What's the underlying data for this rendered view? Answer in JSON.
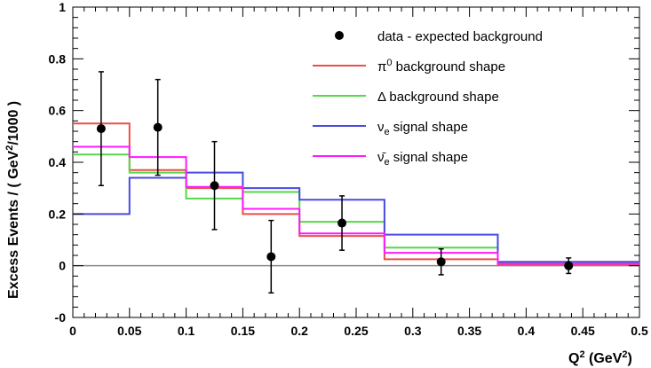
{
  "chart_data": {
    "type": "line",
    "title": "",
    "xlabel": "Q",
    "xlabel_sup": "2",
    "xlabel_unit": " (GeV",
    "xlabel_unit_sup": "2",
    "xlabel_end": ")",
    "ylabel": "Excess Events / ( GeV",
    "ylabel_sup": "2",
    "ylabel_end": "/1000 )",
    "xlim": [
      0,
      0.5
    ],
    "ylim": [
      -0.2,
      1.0
    ],
    "xticks": [
      "0",
      "0.05",
      "0.1",
      "0.15",
      "0.2",
      "0.25",
      "0.3",
      "0.35",
      "0.4",
      "0.45",
      "0.5"
    ],
    "yticks": [
      "-0",
      "0",
      "0.2",
      "0.4",
      "0.6",
      "0.8",
      "1"
    ],
    "ytick_values": [
      -0.2,
      0,
      0.2,
      0.4,
      0.6,
      0.8,
      1.0
    ],
    "bin_edges": [
      0,
      0.05,
      0.1,
      0.15,
      0.2,
      0.275,
      0.375,
      0.5
    ],
    "series": [
      {
        "name": "π⁰ background shape",
        "legend_main": "π",
        "legend_sup": "0",
        "legend_rest": " background shape",
        "color": "#e8504a",
        "values": [
          0.55,
          0.37,
          0.3,
          0.2,
          0.115,
          0.025,
          0.005
        ]
      },
      {
        "name": "Δ background shape",
        "legend_main": "Δ",
        "legend_sup": "",
        "legend_rest": " background shape",
        "color": "#55d84a",
        "values": [
          0.43,
          0.36,
          0.26,
          0.285,
          0.17,
          0.07,
          0.012
        ]
      },
      {
        "name": "νe signal shape",
        "legend_main": "ν",
        "legend_sub": "e",
        "legend_rest": " signal shape",
        "color": "#4a4ae0",
        "values": [
          0.2,
          0.34,
          0.36,
          0.3,
          0.255,
          0.12,
          0.015
        ]
      },
      {
        "name": "ν̄e signal shape",
        "legend_main": "ν̄",
        "legend_sub": "e",
        "legend_rest": " signal shape",
        "color": "#ff1aff",
        "values": [
          0.46,
          0.42,
          0.305,
          0.22,
          0.125,
          0.05,
          0.008
        ]
      }
    ],
    "data": {
      "name": "data - expected background",
      "x": [
        0.025,
        0.075,
        0.125,
        0.175,
        0.2375,
        0.325,
        0.4375
      ],
      "y": [
        0.53,
        0.535,
        0.31,
        0.035,
        0.165,
        0.015,
        0.0
      ],
      "err": [
        0.22,
        0.185,
        0.17,
        0.14,
        0.105,
        0.05,
        0.03
      ]
    },
    "grid": false,
    "legend_placement": "top-right",
    "zero_line": true
  }
}
